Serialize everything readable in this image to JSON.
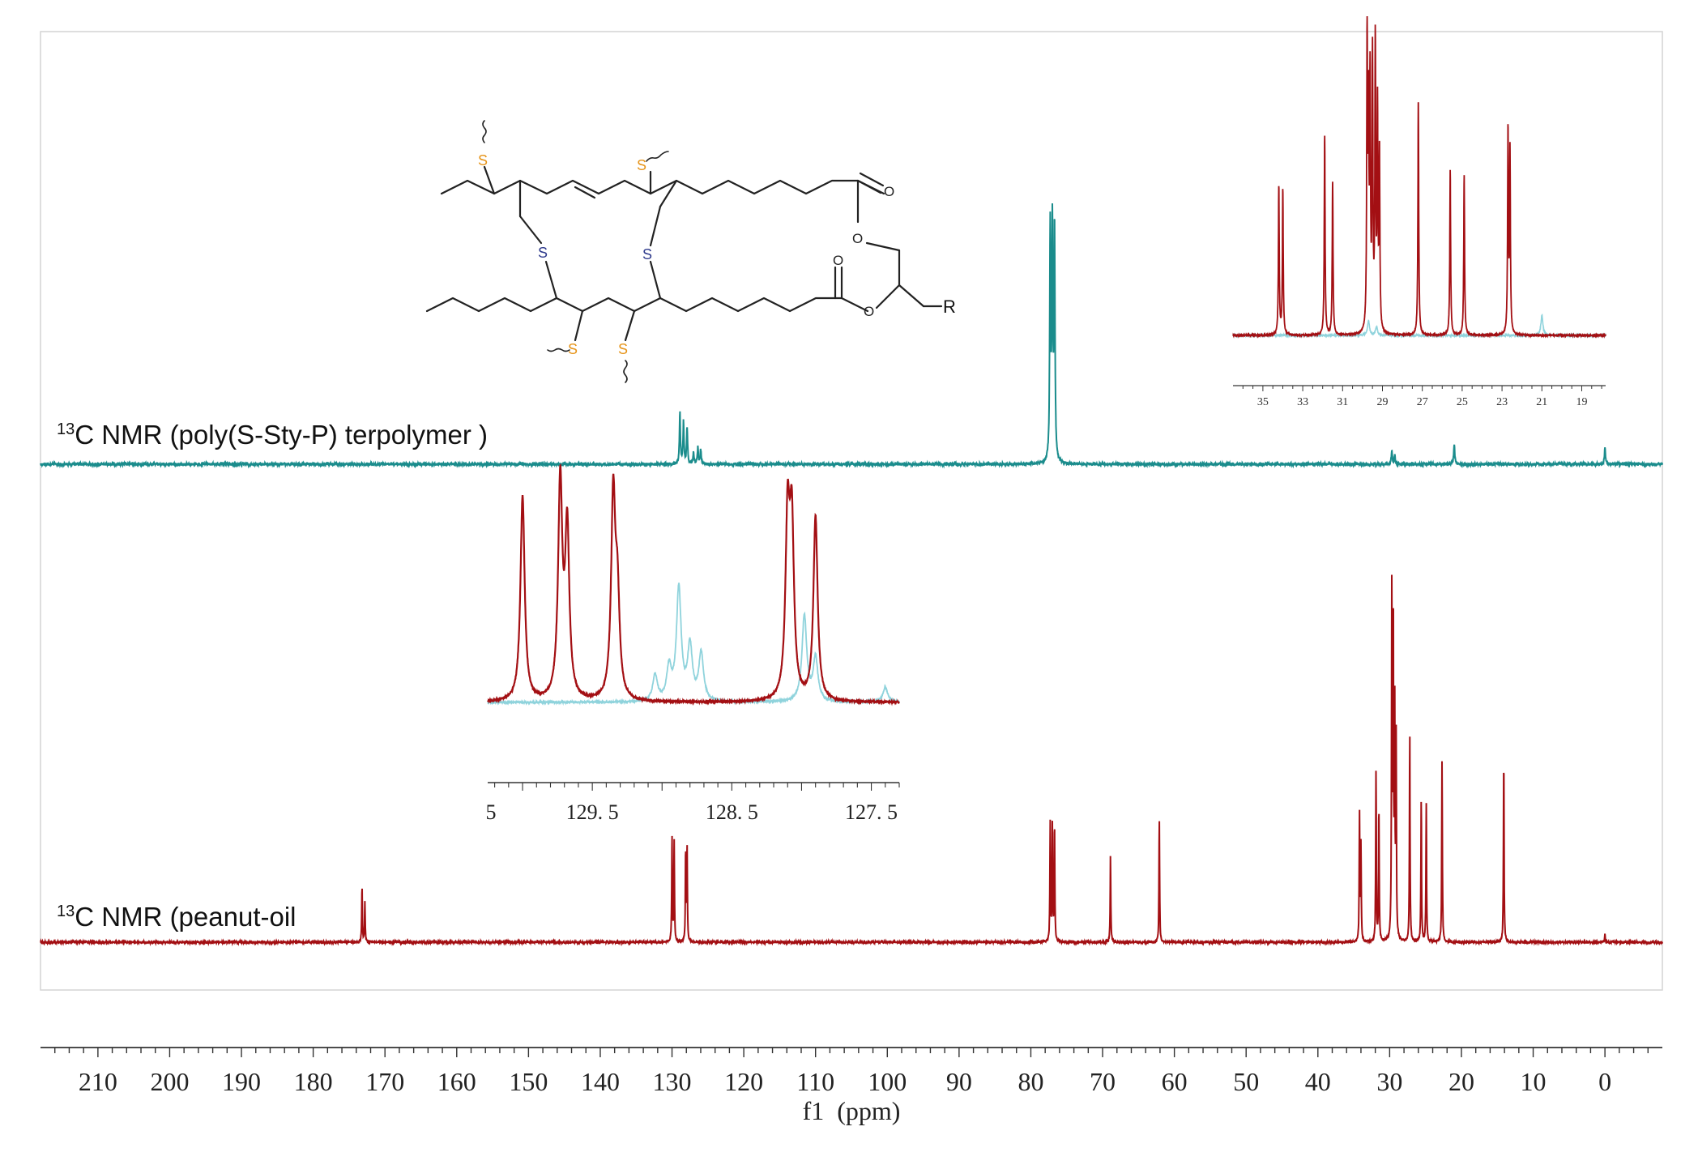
{
  "colors": {
    "terpolymer": "#1a8c8c",
    "peanut_oil": "#a30f13",
    "overlay": "#8fd3dc",
    "sulfur_orange": "#e69419",
    "sulfur_blue": "#2e3a8c",
    "frame": "#d4d4d4",
    "axis": "#333333"
  },
  "labels": {
    "terpolymer_sup": "13",
    "terpolymer_text": "C NMR (poly(S-Sty-P) terpolymer )",
    "peanut_sup": "13",
    "peanut_text": "C NMR (peanut-oil"
  },
  "structure": {
    "sulfur_label": "S",
    "oxygen_label": "O",
    "r_label": "R"
  },
  "chart_data": [
    {
      "type": "line",
      "title": "",
      "xlabel": "f1  (ppm)",
      "ylabel": "",
      "xlim": [
        218,
        -8
      ],
      "x_reversed": true,
      "grid": false,
      "x_ticks": [
        210,
        200,
        190,
        180,
        170,
        160,
        150,
        140,
        130,
        120,
        110,
        100,
        90,
        80,
        70,
        60,
        50,
        40,
        30,
        20,
        10,
        0
      ],
      "series": [
        {
          "name": "13C NMR (poly(S-Sty-P) terpolymer )",
          "peaks": [
            {
              "ppm": 128.9,
              "height": 0.22
            },
            {
              "ppm": 128.4,
              "height": 0.18
            },
            {
              "ppm": 127.9,
              "height": 0.16
            },
            {
              "ppm": 127.0,
              "height": 0.05
            },
            {
              "ppm": 126.4,
              "height": 0.07
            },
            {
              "ppm": 126.0,
              "height": 0.06
            },
            {
              "ppm": 77.3,
              "height": 1.0
            },
            {
              "ppm": 77.0,
              "height": 1.0
            },
            {
              "ppm": 76.7,
              "height": 1.0
            },
            {
              "ppm": 29.7,
              "height": 0.06
            },
            {
              "ppm": 29.3,
              "height": 0.04
            },
            {
              "ppm": 21.0,
              "height": 0.09
            },
            {
              "ppm": 0.0,
              "height": 0.07
            }
          ]
        },
        {
          "name": "13C NMR (peanut-oil",
          "peaks": [
            {
              "ppm": 173.2,
              "height": 0.14
            },
            {
              "ppm": 172.8,
              "height": 0.1
            },
            {
              "ppm": 130.0,
              "height": 0.27
            },
            {
              "ppm": 129.7,
              "height": 0.25
            },
            {
              "ppm": 128.1,
              "height": 0.23
            },
            {
              "ppm": 127.9,
              "height": 0.24
            },
            {
              "ppm": 77.3,
              "height": 0.3
            },
            {
              "ppm": 77.0,
              "height": 0.3
            },
            {
              "ppm": 76.7,
              "height": 0.3
            },
            {
              "ppm": 68.9,
              "height": 0.22
            },
            {
              "ppm": 62.1,
              "height": 0.31
            },
            {
              "ppm": 34.2,
              "height": 0.32
            },
            {
              "ppm": 34.0,
              "height": 0.24
            },
            {
              "ppm": 31.9,
              "height": 0.43
            },
            {
              "ppm": 31.5,
              "height": 0.34
            },
            {
              "ppm": 29.7,
              "height": 0.9
            },
            {
              "ppm": 29.5,
              "height": 0.82
            },
            {
              "ppm": 29.3,
              "height": 0.58
            },
            {
              "ppm": 29.1,
              "height": 0.5
            },
            {
              "ppm": 27.2,
              "height": 0.53
            },
            {
              "ppm": 25.6,
              "height": 0.36
            },
            {
              "ppm": 24.9,
              "height": 0.35
            },
            {
              "ppm": 22.7,
              "height": 0.46
            },
            {
              "ppm": 14.1,
              "height": 0.47
            },
            {
              "ppm": 0.0,
              "height": 0.02
            }
          ]
        }
      ]
    },
    {
      "type": "line",
      "title": "",
      "xlabel": "",
      "xlim": [
        36.5,
        17.8
      ],
      "x_reversed": true,
      "x_ticks": [
        35,
        33,
        31,
        29,
        27,
        25,
        23,
        21,
        19
      ],
      "series": [
        {
          "name": "peanut-oil",
          "peaks": [
            {
              "ppm": 34.2,
              "height": 0.52
            },
            {
              "ppm": 34.0,
              "height": 0.51
            },
            {
              "ppm": 31.9,
              "height": 0.7
            },
            {
              "ppm": 31.5,
              "height": 0.54
            },
            {
              "ppm": 29.77,
              "height": 1.0
            },
            {
              "ppm": 29.7,
              "height": 0.72
            },
            {
              "ppm": 29.62,
              "height": 0.85
            },
            {
              "ppm": 29.5,
              "height": 0.95
            },
            {
              "ppm": 29.36,
              "height": 1.0
            },
            {
              "ppm": 29.25,
              "height": 0.78
            },
            {
              "ppm": 29.15,
              "height": 0.62
            },
            {
              "ppm": 27.2,
              "height": 0.83
            },
            {
              "ppm": 25.6,
              "height": 0.58
            },
            {
              "ppm": 24.9,
              "height": 0.56
            },
            {
              "ppm": 22.7,
              "height": 0.71
            },
            {
              "ppm": 22.6,
              "height": 0.64
            }
          ]
        },
        {
          "name": "terpolymer",
          "peaks": [
            {
              "ppm": 29.7,
              "height": 0.05
            },
            {
              "ppm": 29.3,
              "height": 0.03
            },
            {
              "ppm": 21.0,
              "height": 0.07
            }
          ]
        }
      ]
    },
    {
      "type": "line",
      "title": "",
      "xlabel": "",
      "xlim": [
        130.25,
        127.3
      ],
      "x_reversed": true,
      "x_ticks": [
        129.5,
        128.5,
        127.5
      ],
      "first_tick_partial": "5",
      "series": [
        {
          "name": "peanut-oil",
          "peaks": [
            {
              "ppm": 130.0,
              "height": 0.95
            },
            {
              "ppm": 129.73,
              "height": 1.0
            },
            {
              "ppm": 129.68,
              "height": 0.78
            },
            {
              "ppm": 129.35,
              "height": 0.93
            },
            {
              "ppm": 129.32,
              "height": 0.44
            },
            {
              "ppm": 128.1,
              "height": 0.81
            },
            {
              "ppm": 128.07,
              "height": 0.77
            },
            {
              "ppm": 127.9,
              "height": 0.85
            }
          ]
        },
        {
          "name": "terpolymer",
          "peaks": [
            {
              "ppm": 128.88,
              "height": 0.52
            },
            {
              "ppm": 128.8,
              "height": 0.25
            },
            {
              "ppm": 128.95,
              "height": 0.15
            },
            {
              "ppm": 128.72,
              "height": 0.22
            },
            {
              "ppm": 129.05,
              "height": 0.12
            },
            {
              "ppm": 127.98,
              "height": 0.4
            },
            {
              "ppm": 127.9,
              "height": 0.2
            },
            {
              "ppm": 127.4,
              "height": 0.07
            }
          ]
        }
      ]
    }
  ]
}
